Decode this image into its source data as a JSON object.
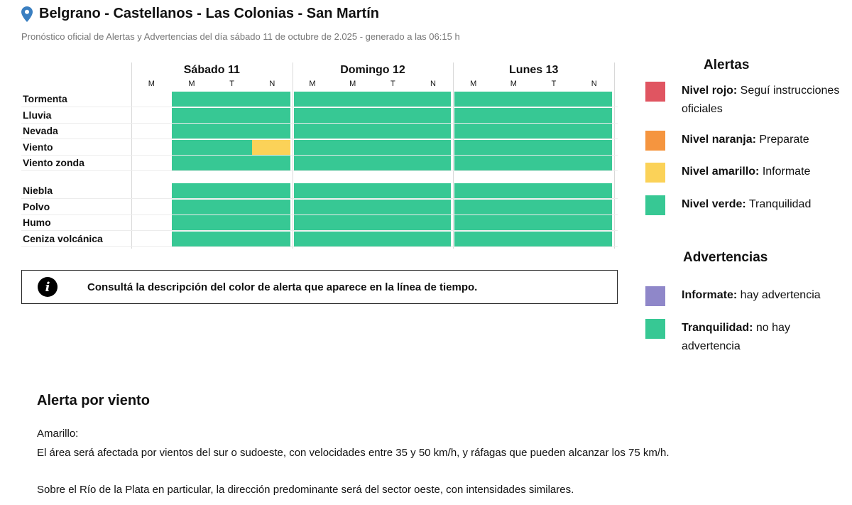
{
  "header": {
    "title": "Belgrano - Castellanos - Las Colonias - San Martín",
    "subtitle": "Pronóstico oficial de Alertas y Advertencias del día sábado 11 de octubre de 2.025 - generado a las 06:15 h"
  },
  "grid": {
    "days": [
      {
        "label": "Sábado 11",
        "periods": [
          "M",
          "M",
          "T",
          "N"
        ]
      },
      {
        "label": "Domingo 12",
        "periods": [
          "M",
          "M",
          "T",
          "N"
        ]
      },
      {
        "label": "Lunes 13",
        "periods": [
          "M",
          "M",
          "T",
          "N"
        ]
      }
    ],
    "rows": [
      {
        "label": "Tormenta",
        "levels": [
          "none",
          "green",
          "green",
          "green",
          "green",
          "green",
          "green",
          "green",
          "green",
          "green",
          "green",
          "green"
        ]
      },
      {
        "label": "Lluvia",
        "levels": [
          "none",
          "green",
          "green",
          "green",
          "green",
          "green",
          "green",
          "green",
          "green",
          "green",
          "green",
          "green"
        ]
      },
      {
        "label": "Nevada",
        "levels": [
          "none",
          "green",
          "green",
          "green",
          "green",
          "green",
          "green",
          "green",
          "green",
          "green",
          "green",
          "green"
        ]
      },
      {
        "label": "Viento",
        "levels": [
          "none",
          "green",
          "green",
          "yellow",
          "green",
          "green",
          "green",
          "green",
          "green",
          "green",
          "green",
          "green"
        ]
      },
      {
        "label": "Viento zonda",
        "levels": [
          "none",
          "green",
          "green",
          "green",
          "green",
          "green",
          "green",
          "green",
          "green",
          "green",
          "green",
          "green"
        ]
      },
      {
        "label": "Niebla",
        "levels": [
          "none",
          "green",
          "green",
          "green",
          "green",
          "green",
          "green",
          "green",
          "green",
          "green",
          "green",
          "green"
        ]
      },
      {
        "label": "Polvo",
        "levels": [
          "none",
          "green",
          "green",
          "green",
          "green",
          "green",
          "green",
          "green",
          "green",
          "green",
          "green",
          "green"
        ]
      },
      {
        "label": "Humo",
        "levels": [
          "none",
          "green",
          "green",
          "green",
          "green",
          "green",
          "green",
          "green",
          "green",
          "green",
          "green",
          "green"
        ]
      },
      {
        "label": "Ceniza volcánica",
        "levels": [
          "none",
          "green",
          "green",
          "green",
          "green",
          "green",
          "green",
          "green",
          "green",
          "green",
          "green",
          "green"
        ]
      }
    ]
  },
  "colors": {
    "red": "#e05561",
    "orange": "#f5953f",
    "yellow": "#fbd258",
    "green": "#37c894",
    "purple": "#8f87c9"
  },
  "info": {
    "icon": "info-icon",
    "text": "Consultá la descripción del color de alerta que aparece en la línea de tiempo."
  },
  "legend": {
    "alerts_title": "Alertas",
    "alerts": [
      {
        "color": "red",
        "name": "Nivel rojo:",
        "desc": "Seguí instrucciones oficiales"
      },
      {
        "color": "orange",
        "name": "Nivel naranja:",
        "desc": "Preparate"
      },
      {
        "color": "yellow",
        "name": "Nivel amarillo:",
        "desc": "Informate"
      },
      {
        "color": "green",
        "name": "Nivel verde:",
        "desc": "Tranquilidad"
      }
    ],
    "warnings_title": "Advertencias",
    "warnings": [
      {
        "color": "purple",
        "name": "Informate:",
        "desc": "hay advertencia"
      },
      {
        "color": "green",
        "name": "Tranquilidad:",
        "desc": "no hay advertencia"
      }
    ]
  },
  "alert": {
    "heading": "Alerta por viento",
    "level": "Amarillo:",
    "line1": "El área será afectada por vientos del sur o sudoeste, con velocidades entre 35 y 50 km/h, y ráfagas que pueden alcanzar los 75 km/h.",
    "line2": "Sobre el Río de la Plata en particular, la dirección predominante será del sector oeste, con intensidades similares."
  }
}
